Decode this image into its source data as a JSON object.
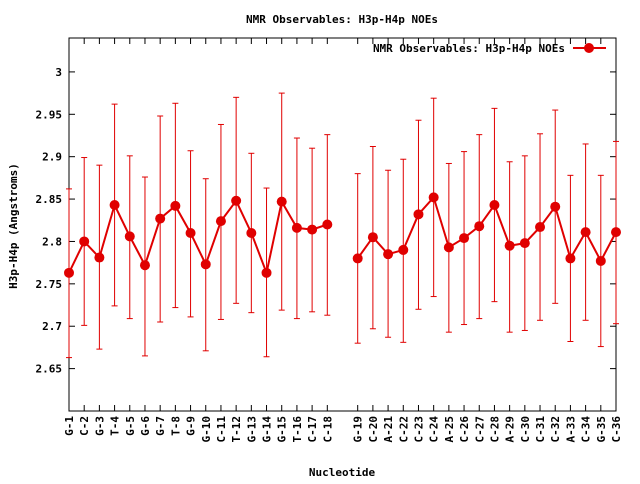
{
  "chart_data": {
    "type": "line",
    "title": "NMR Observables: H3p-H4p NOEs",
    "xlabel": "Nucleotide",
    "ylabel": "H3p-H4p (Angstroms)",
    "ylim": [
      2.6,
      3.04
    ],
    "yticks": [
      2.65,
      2.7,
      2.75,
      2.8,
      2.85,
      2.9,
      2.95,
      3
    ],
    "ytick_labels": [
      "2.65",
      "2.7",
      "2.75",
      "2.8",
      "2.85",
      "2.9",
      "2.95",
      "3"
    ],
    "grid": false,
    "legend": {
      "position": "top-right",
      "label": "NMR Observables: H3p-H4p NOEs"
    },
    "colors": {
      "series": "#e00000",
      "axis": "#000000",
      "background": "#ffffff"
    },
    "categories": [
      "G-1",
      "C-2",
      "G-3",
      "T-4",
      "G-5",
      "G-6",
      "G-7",
      "T-8",
      "G-9",
      "G-10",
      "C-11",
      "T-12",
      "G-13",
      "G-14",
      "G-15",
      "T-16",
      "C-17",
      "C-18",
      "G-19",
      "C-20",
      "A-21",
      "C-22",
      "C-23",
      "C-24",
      "A-25",
      "C-26",
      "C-27",
      "C-28",
      "A-29",
      "C-30",
      "C-31",
      "C-32",
      "A-33",
      "C-34",
      "G-35",
      "C-36"
    ],
    "x_positions": [
      1,
      2,
      3,
      4,
      5,
      6,
      7,
      8,
      9,
      10,
      11,
      12,
      13,
      14,
      15,
      16,
      17,
      18,
      20,
      21,
      22,
      23,
      24,
      25,
      26,
      27,
      28,
      29,
      30,
      31,
      32,
      33,
      34,
      35,
      36,
      37
    ],
    "xlim": [
      1,
      37
    ],
    "series": [
      {
        "name": "NMR Observables: H3p-H4p NOEs",
        "segments": [
          [
            0,
            17
          ],
          [
            18,
            35
          ]
        ],
        "values": [
          2.763,
          2.8,
          2.781,
          2.843,
          2.806,
          2.772,
          2.827,
          2.842,
          2.81,
          2.773,
          2.824,
          2.848,
          2.81,
          2.763,
          2.847,
          2.816,
          2.814,
          2.82,
          2.78,
          2.805,
          2.785,
          2.79,
          2.832,
          2.852,
          2.793,
          2.804,
          2.818,
          2.843,
          2.795,
          2.798,
          2.817,
          2.841,
          2.78,
          2.811,
          2.777,
          2.811
        ],
        "err_low": [
          2.663,
          2.701,
          2.673,
          2.724,
          2.709,
          2.665,
          2.705,
          2.722,
          2.711,
          2.671,
          2.708,
          2.727,
          2.716,
          2.664,
          2.719,
          2.709,
          2.717,
          2.713,
          2.68,
          2.697,
          2.687,
          2.681,
          2.72,
          2.735,
          2.693,
          2.702,
          2.709,
          2.729,
          2.693,
          2.695,
          2.707,
          2.727,
          2.682,
          2.707,
          2.676,
          2.703
        ],
        "err_high": [
          2.862,
          2.899,
          2.89,
          2.962,
          2.901,
          2.876,
          2.948,
          2.963,
          2.907,
          2.874,
          2.938,
          2.97,
          2.904,
          2.863,
          2.975,
          2.922,
          2.91,
          2.926,
          2.88,
          2.912,
          2.884,
          2.897,
          2.943,
          2.969,
          2.892,
          2.906,
          2.926,
          2.957,
          2.894,
          2.901,
          2.927,
          2.955,
          2.878,
          2.915,
          2.878,
          2.918
        ]
      }
    ]
  }
}
